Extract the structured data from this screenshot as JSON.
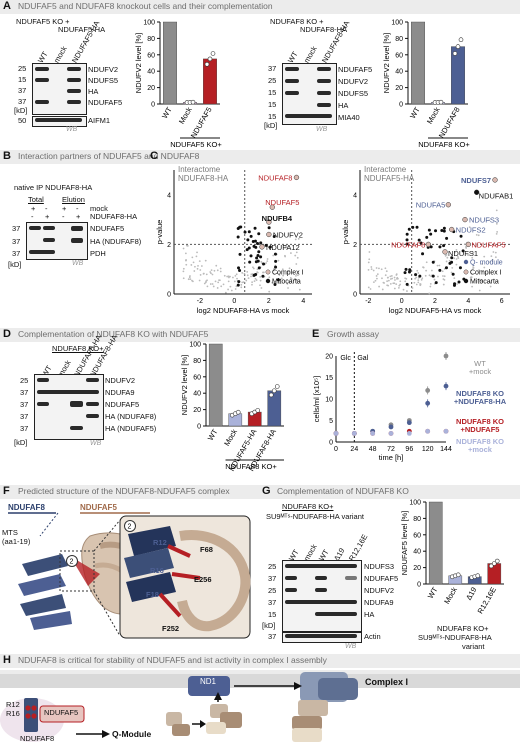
{
  "panelA": {
    "letter": "A",
    "title": "NDUFAF5 and NDUFAF8 knockout cells and their complementation",
    "left_header": "NDUFAF5 KO + ",
    "left_header_sub": "NDUFAF5-HA",
    "left_lanes": [
      "WT",
      "mock",
      "NDUFAF5-HA"
    ],
    "left_bands": [
      "NDUFV2",
      "NDUFS5",
      "HA",
      "NDUFAF5",
      "AIFM1"
    ],
    "left_mw": [
      "25",
      "15",
      "37",
      "37",
      "50"
    ],
    "right_header": "NDUFAF8 KO + ",
    "right_header_sub": "NDUFAF8-HA",
    "right_lanes": [
      "WT",
      "mock",
      "NDUFAF8-HA"
    ],
    "right_bands": [
      "NDUFAF5",
      "NDUFV2",
      "NDUFS5",
      "HA",
      "MIA40"
    ],
    "right_mw": [
      "37",
      "25",
      "15",
      "15",
      "15"
    ],
    "kd": "[kD]",
    "wb": "WB",
    "bar1_ylabel": "NDUFV2 level [%]",
    "bar1_xlabel": "NDUFAF5 KO+",
    "bar2_ylabel": "NDUFV2 level [%]",
    "bar2_xlabel": "NDUFAF8 KO+"
  },
  "panelB": {
    "letter": "B",
    "title": "Interaction partners of NDUFAF5 and NDUFAF8",
    "ip_label": "native IP NDUFAF8-HA",
    "col_total": "Total",
    "col_elution": "Elution",
    "row_mock": "mock",
    "row_ha": "NDUFAF8-HA",
    "signs_mock": [
      "+",
      "-",
      "+",
      "-"
    ],
    "signs_ha": [
      "-",
      "+",
      "-",
      "+"
    ],
    "bands": [
      "NDUFAF5",
      "HA (NDUFAF8)",
      "PDH"
    ],
    "mw": [
      "37",
      "37",
      "37"
    ],
    "kd": "[kD]",
    "wb": "WB"
  },
  "panelC": {
    "letter": "C",
    "left_title": "Interactome",
    "left_title2": "NDUFAF8-HA",
    "left_xlabel": "log2 NDUFAF8-HA vs mock",
    "left_labels": [
      "NDUFAF8",
      "NDUFAF5",
      "NDUFB4",
      "NDUFV2",
      "NDUFA12"
    ],
    "left_xticks": [
      "-2",
      "0",
      "2",
      "4"
    ],
    "right_title": "Interactome",
    "right_title2": "NDUFAF5-HA",
    "right_xlabel": "log2 NDUFAF5-HA vs mock",
    "right_labels": [
      "NDUFS7",
      "NDUFAB1",
      "NDUFA5",
      "NDUFS3",
      "NDUFS2",
      "NDUFAF8",
      "NDUFS1",
      "NDUFAF5"
    ],
    "right_xticks": [
      "-2",
      "0",
      "2",
      "4",
      "6"
    ],
    "ylabel": "p-value",
    "yticks": [
      "4",
      "2",
      "0"
    ],
    "legend_q": "Q- module",
    "legend_complex": "Complex I",
    "legend_mito": "Mitocarta"
  },
  "panelD": {
    "letter": "D",
    "title": "Complementation of NDUFAF8 KO with NDUFAF5",
    "header": "NDUFAF8 KO+",
    "lanes": [
      "WT",
      "mock",
      "NDUFAF5-HA",
      "NDUFAF8-HA"
    ],
    "bands": [
      "NDUFV2",
      "NDUFA9",
      "NDUFAF5",
      "HA (NDUFAF8)",
      "HA (NDUFAF5)"
    ],
    "mw": [
      "25",
      "37",
      "37",
      "37",
      "37"
    ],
    "kd": "[kD]",
    "wb": "WB",
    "bar_ylabel": "NDUFV2 level [%]",
    "bar_xlabel": "NDUFAF8 KO+"
  },
  "panelE": {
    "letter": "E",
    "title": "Growth assay",
    "ylabel": "cells/ml [x10⁵]",
    "xlabel": "time [h]",
    "glc": "Glc",
    "gal": "Gal",
    "yticks": [
      "20",
      "15",
      "10",
      "5",
      "0"
    ],
    "xticks": [
      "0",
      "24",
      "48",
      "72",
      "96",
      "120",
      "144"
    ],
    "leg1a": "WT",
    "leg1b": "+mock",
    "leg2a": "NDUFAF8 KO",
    "leg2b": "+NDUFAF8-HA",
    "leg3a": "NDUFAF8 KO",
    "leg3b": "+NDUFAF5",
    "leg4a": "NDUFAF8 KO",
    "leg4b": "+mock"
  },
  "panelF": {
    "letter": "F",
    "title": "Predicted structure of the NDUFAF8-NDUFAF5 complex",
    "lbl_af8": "NDUFAF8",
    "lbl_af5": "NDUFAF5",
    "mts": "MTS",
    "mts2": "(aa1-19)",
    "circle": "2",
    "residues": [
      "R12",
      "F68",
      "R16",
      "E256",
      "F18",
      "F252"
    ]
  },
  "panelG": {
    "letter": "G",
    "title": "Complementation of NDUFAF8 KO",
    "header": "NDUFAF8 KO+",
    "header2": "SU9ᴹᵀˢ-NDUFAF8-HA variant",
    "lanes": [
      "WT",
      "mock",
      "WT",
      "Δ19",
      "R12,16E"
    ],
    "bands": [
      "NDUFS3",
      "NDUFAF5",
      "NDUFV2",
      "NDUFA9",
      "HA",
      "Actin"
    ],
    "mw": [
      "25",
      "37",
      "25",
      "37",
      "15",
      "37"
    ],
    "kd": "[kD]",
    "wb": "WB",
    "bar_ylabel": "NDUFAF5 level [%]",
    "bar_xlabel": "NDUFAF8 KO+",
    "bar_xlabel2": "SU9ᴹᵀˢ-NDUFAF8-HA",
    "bar_xlabel3": "variant"
  },
  "panelH": {
    "letter": "H",
    "title": "NDUFAF8 is critical for stability of NDUFAF5 and ist activity in complex I assembly",
    "nd1": "ND1",
    "complex": "Complex I",
    "qmodule": "Q-Module",
    "af5": "NDUFAF5",
    "af8": "NDUFAF8",
    "r12": "R12",
    "r16": "R16"
  },
  "chart_data": [
    {
      "type": "bar",
      "panel": "A-left",
      "categories": [
        "WT",
        "Mock",
        "NDUFAF5"
      ],
      "values": [
        100,
        2,
        55
      ],
      "ylabel": "NDUFV2 level [%]",
      "ylim": [
        0,
        100
      ],
      "yticks": [
        0,
        20,
        40,
        60,
        80,
        100
      ],
      "colors": [
        "#8c8c8c",
        "#c9a9c9",
        "#b51f24"
      ]
    },
    {
      "type": "bar",
      "panel": "A-right",
      "categories": [
        "WT",
        "Mock",
        "NDUFAF8"
      ],
      "values": [
        100,
        2,
        70
      ],
      "ylabel": "NDUFV2 level [%]",
      "ylim": [
        0,
        100
      ],
      "yticks": [
        0,
        20,
        40,
        60,
        80,
        100
      ],
      "colors": [
        "#8c8c8c",
        "#c9c9e6",
        "#4d5f93"
      ]
    },
    {
      "type": "bar",
      "panel": "D",
      "categories": [
        "WT",
        "Mock",
        "NDUFAF5-HA",
        "NDUFAF8-HA"
      ],
      "values": [
        100,
        15,
        17,
        43
      ],
      "ylabel": "NDUFV2 level [%]",
      "ylim": [
        0,
        100
      ],
      "yticks": [
        0,
        20,
        40,
        60,
        80,
        100
      ],
      "colors": [
        "#8c8c8c",
        "#aab2da",
        "#b51f24",
        "#4d5f93"
      ]
    },
    {
      "type": "bar",
      "panel": "G",
      "categories": [
        "WT",
        "Mock",
        "Δ19",
        "R12,16E"
      ],
      "values": [
        100,
        10,
        9,
        25
      ],
      "ylabel": "NDUFAF5 level [%]",
      "ylim": [
        0,
        100
      ],
      "yticks": [
        0,
        20,
        40,
        60,
        80,
        100
      ],
      "colors": [
        "#8c8c8c",
        "#aab2da",
        "#4d5f93",
        "#b51f24"
      ]
    },
    {
      "type": "line",
      "panel": "E",
      "x": [
        0,
        24,
        48,
        72,
        96,
        120,
        144
      ],
      "series": [
        {
          "name": "WT +mock",
          "values": [
            2,
            2,
            2.5,
            4,
            5,
            12,
            20
          ],
          "color": "#8c8c8c"
        },
        {
          "name": "NDUFAF8 KO +NDUFAF8-HA",
          "values": [
            2,
            2,
            2.5,
            3.5,
            4.5,
            9,
            13
          ],
          "color": "#4d5f93"
        },
        {
          "name": "NDUFAF8 KO +NDUFAF5",
          "values": [
            2,
            2,
            2,
            2,
            2.5,
            2.5,
            2.5
          ],
          "color": "#b51f24"
        },
        {
          "name": "NDUFAF8 KO +mock",
          "values": [
            2,
            2,
            2,
            2,
            2,
            2.5,
            2.5
          ],
          "color": "#aab2da"
        }
      ],
      "ylabel": "cells/ml [x10⁵]",
      "xlabel": "time [h]",
      "ylim": [
        0,
        20
      ]
    }
  ]
}
